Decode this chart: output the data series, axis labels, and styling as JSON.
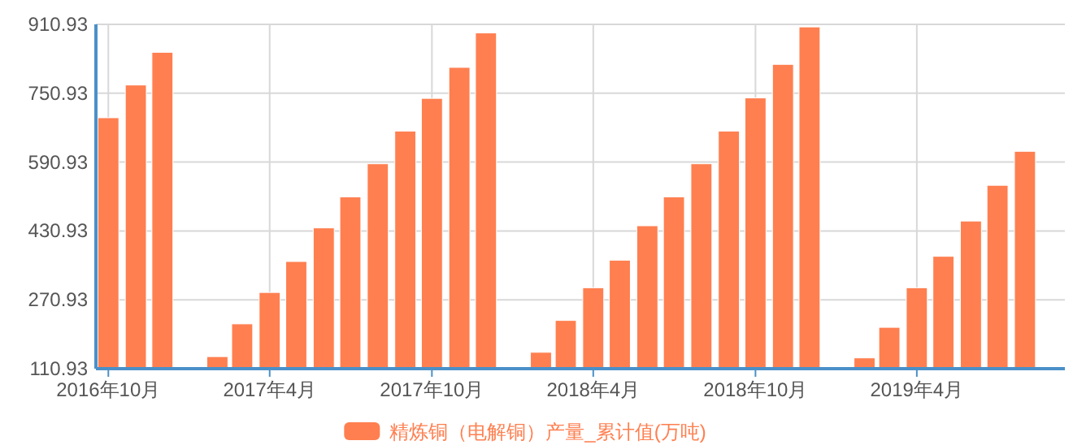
{
  "chart_data": {
    "type": "bar",
    "x": [
      "2016-10",
      "2016-11",
      "2016-12",
      "2017-02",
      "2017-03",
      "2017-04",
      "2017-05",
      "2017-06",
      "2017-07",
      "2017-08",
      "2017-09",
      "2017-10",
      "2017-11",
      "2017-12",
      "2018-02",
      "2018-03",
      "2018-04",
      "2018-05",
      "2018-06",
      "2018-07",
      "2018-08",
      "2018-09",
      "2018-10",
      "2018-11",
      "2018-12",
      "2019-02",
      "2019-03",
      "2019-04",
      "2019-05",
      "2019-06",
      "2019-07",
      "2019-08"
    ],
    "series": [
      {
        "name": "精炼铜（电解铜）产量_累计值(万吨)",
        "color": "#ff7f50",
        "values": [
          694,
          770,
          846,
          139,
          215,
          288,
          360,
          438,
          510,
          587,
          663,
          739,
          811,
          891,
          149,
          223,
          299,
          363,
          443,
          510,
          587,
          663,
          740,
          818,
          905,
          136,
          207,
          299,
          372,
          454,
          537,
          616
        ]
      }
    ],
    "xlim": [
      "2016-09-17",
      "2019-09-15"
    ],
    "xticks": [
      {
        "value": "2016-10",
        "label": "2016年10月"
      },
      {
        "value": "2017-04",
        "label": "2017年4月"
      },
      {
        "value": "2017-10",
        "label": "2017年10月"
      },
      {
        "value": "2018-04",
        "label": "2018年4月"
      },
      {
        "value": "2018-10",
        "label": "2018年10月"
      },
      {
        "value": "2019-04",
        "label": "2019年4月"
      }
    ],
    "ylim": [
      110.93,
      910.93
    ],
    "yticks": [
      110.93,
      270.93,
      430.93,
      590.93,
      750.93,
      910.93
    ],
    "grid": true,
    "legend": "bottom"
  }
}
